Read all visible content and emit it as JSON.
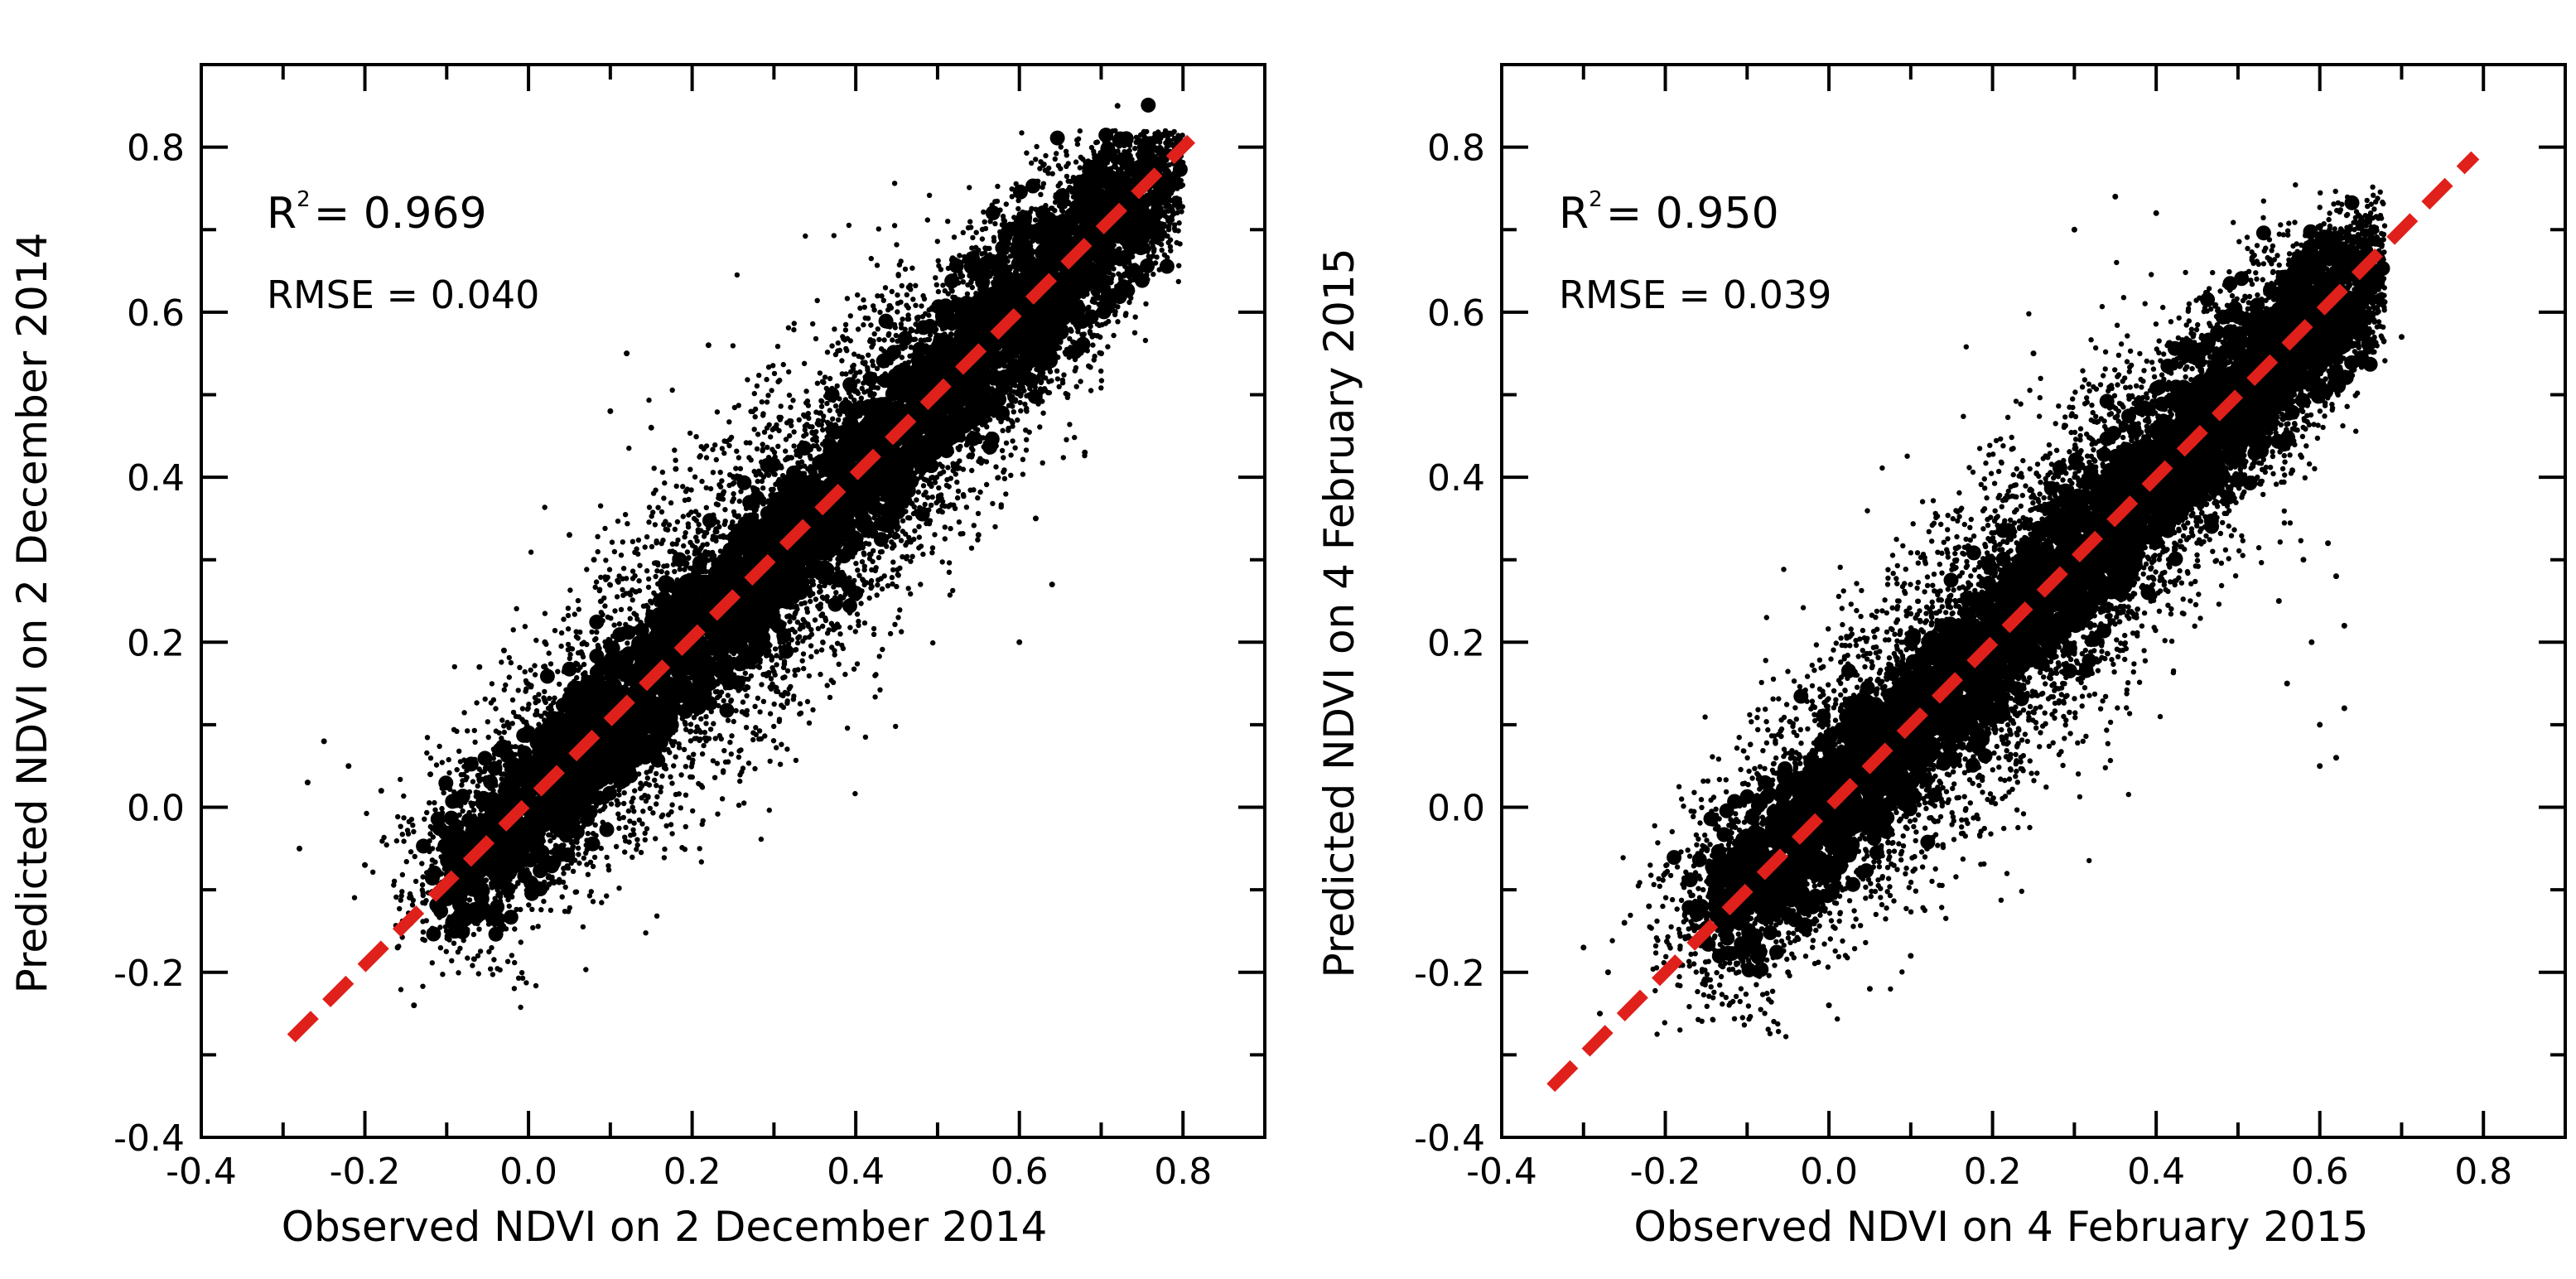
{
  "colors": {
    "points": "#000000",
    "fit_line": "#e0201b",
    "axes": "#000000",
    "background": "#ffffff"
  },
  "chart_data": [
    {
      "type": "scatter",
      "panel": "left",
      "xlabel": "Observed NDVI on 2 December 2014",
      "ylabel": "Predicted NDVI on 2 December 2014",
      "xlim": [
        -0.4,
        0.9
      ],
      "ylim": [
        -0.4,
        0.9
      ],
      "xticks": [
        "-0.4",
        "-0.2",
        "0.0",
        "0.2",
        "0.4",
        "0.6",
        "0.8"
      ],
      "yticks": [
        "-0.4",
        "-0.2",
        "0.0",
        "0.2",
        "0.4",
        "0.6",
        "0.8"
      ],
      "stats": {
        "r2_label": "R",
        "r2_sup": "2",
        "r2_value": "= 0.969",
        "rmse": "RMSE = 0.040"
      },
      "fit_line": {
        "x": [
          -0.29,
          0.81
        ],
        "y": [
          -0.28,
          0.81
        ],
        "style": "dashed"
      },
      "point_cloud": {
        "x_range": [
          -0.29,
          0.8
        ],
        "y_range": [
          -0.25,
          0.82
        ],
        "center_line_slope": 1.0,
        "spread": 0.06
      },
      "points": [
        [
          -0.28,
          -0.05
        ],
        [
          -0.27,
          0.03
        ],
        [
          -0.25,
          0.08
        ],
        [
          -0.22,
          0.05
        ],
        [
          -0.2,
          -0.07
        ],
        [
          -0.18,
          0.02
        ],
        [
          -0.16,
          -0.17
        ],
        [
          -0.14,
          -0.24
        ],
        [
          -0.12,
          0.04
        ],
        [
          -0.1,
          -0.15
        ],
        [
          -0.08,
          -0.12
        ],
        [
          -0.06,
          0.17
        ],
        [
          -0.05,
          0.06
        ],
        [
          -0.03,
          0.19
        ],
        [
          0.0,
          0.09
        ],
        [
          0.02,
          0.2
        ],
        [
          0.05,
          0.33
        ],
        [
          0.08,
          0.3
        ],
        [
          0.1,
          0.48
        ],
        [
          0.12,
          0.55
        ],
        [
          0.15,
          0.46
        ],
        [
          0.18,
          0.41
        ],
        [
          0.22,
          0.56
        ],
        [
          0.55,
          0.33
        ],
        [
          0.6,
          0.2
        ],
        [
          0.62,
          0.35
        ],
        [
          0.64,
          0.27
        ],
        [
          0.68,
          0.43
        ],
        [
          0.7,
          0.55
        ],
        [
          0.72,
          0.85
        ]
      ]
    },
    {
      "type": "scatter",
      "panel": "right",
      "xlabel": "Observed NDVI on 4 February 2015",
      "ylabel": "Predicted NDVI on 4 February 2015",
      "xlim": [
        -0.4,
        0.9
      ],
      "ylim": [
        -0.4,
        0.9
      ],
      "xticks": [
        "-0.4",
        "-0.2",
        "0.0",
        "0.2",
        "0.4",
        "0.6",
        "0.8"
      ],
      "yticks": [
        "-0.4",
        "-0.2",
        "0.0",
        "0.2",
        "0.4",
        "0.6",
        "0.8"
      ],
      "stats": {
        "r2_label": "R",
        "r2_sup": "2",
        "r2_value": "= 0.950",
        "rmse": "RMSE = 0.039"
      },
      "fit_line": {
        "x": [
          -0.34,
          0.79
        ],
        "y": [
          -0.34,
          0.79
        ],
        "style": "dashed"
      },
      "point_cloud": {
        "x_range": [
          -0.33,
          0.68
        ],
        "y_range": [
          -0.28,
          0.76
        ],
        "center_line_slope": 1.0,
        "spread": 0.06
      },
      "points": [
        [
          -0.3,
          -0.17
        ],
        [
          -0.28,
          -0.25
        ],
        [
          -0.27,
          -0.2
        ],
        [
          -0.25,
          -0.14
        ],
        [
          -0.22,
          -0.12
        ],
        [
          -0.2,
          -0.08
        ],
        [
          -0.15,
          -0.05
        ],
        [
          -0.1,
          -0.1
        ],
        [
          -0.05,
          -0.2
        ],
        [
          0.0,
          -0.24
        ],
        [
          0.05,
          -0.22
        ],
        [
          0.1,
          -0.18
        ],
        [
          0.12,
          -0.05
        ],
        [
          0.2,
          0.1
        ],
        [
          0.25,
          0.55
        ],
        [
          0.3,
          0.7
        ],
        [
          0.35,
          0.74
        ],
        [
          0.4,
          0.72
        ],
        [
          0.55,
          0.25
        ],
        [
          0.56,
          0.15
        ],
        [
          0.58,
          0.3
        ],
        [
          0.59,
          0.2
        ],
        [
          0.6,
          0.1
        ],
        [
          0.61,
          0.32
        ],
        [
          0.62,
          0.28
        ],
        [
          0.63,
          0.22
        ],
        [
          0.63,
          0.12
        ],
        [
          0.62,
          0.06
        ],
        [
          0.7,
          0.57
        ],
        [
          0.6,
          0.05
        ]
      ]
    }
  ]
}
